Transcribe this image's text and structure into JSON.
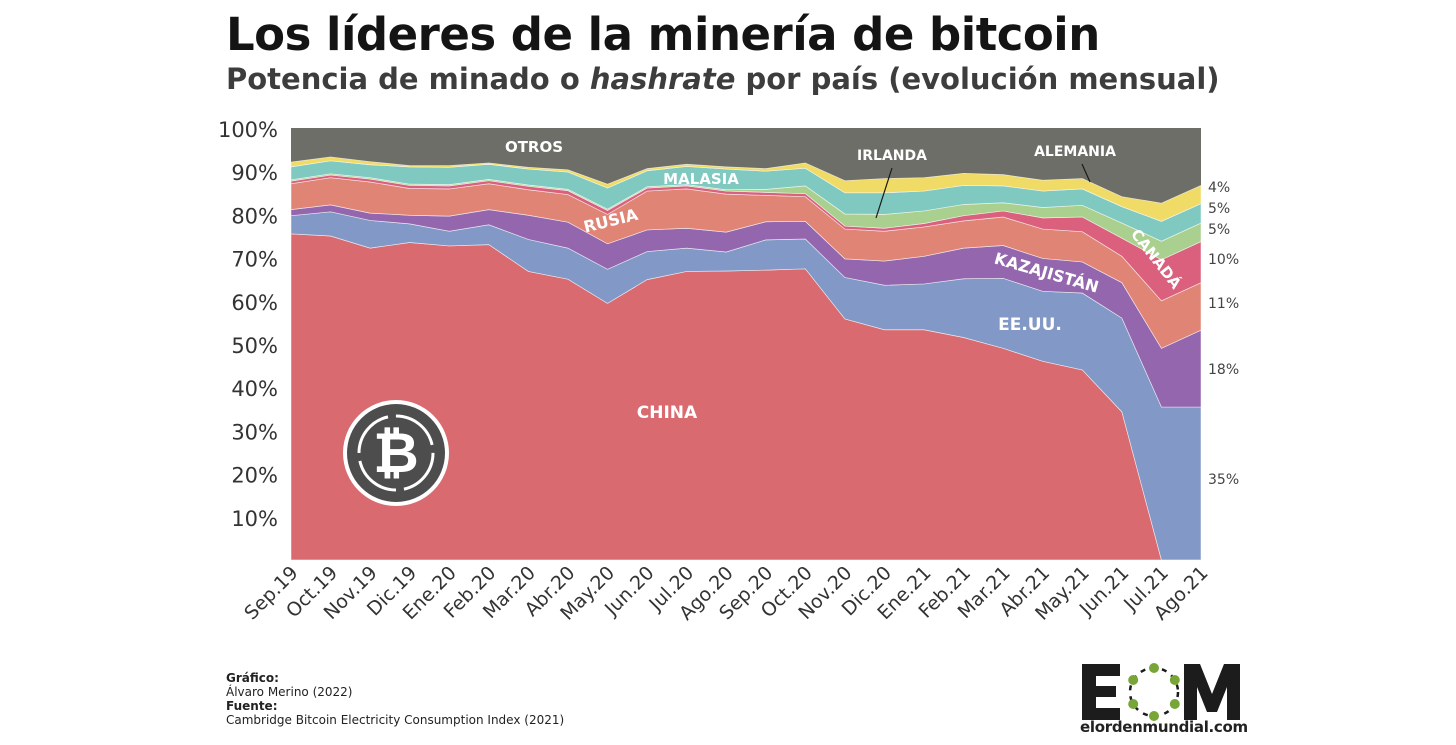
{
  "header": {
    "title": "Los líderes de la minería de bitcoin",
    "subtitle_pre": "Potencia de minado o ",
    "subtitle_em": "hashrate",
    "subtitle_post": " por país (evolución mensual)"
  },
  "chart_data": {
    "type": "area",
    "stacked": true,
    "ylim": [
      0,
      100
    ],
    "yticks": [
      "10%",
      "20%",
      "30%",
      "40%",
      "50%",
      "60%",
      "70%",
      "80%",
      "90%",
      "100%"
    ],
    "grid": false,
    "categories": [
      "Sep.19",
      "Oct.19",
      "Nov.19",
      "Dic.19",
      "Ene.20",
      "Feb.20",
      "Mar.20",
      "Abr.20",
      "May.20",
      "Jun.20",
      "Jul.20",
      "Ago.20",
      "Sep.20",
      "Oct.20",
      "Nov.20",
      "Dic.20",
      "Ene.21",
      "Feb.21",
      "Mar.21",
      "Abr.21",
      "May.21",
      "Jun.21",
      "Jul.21",
      "Ago.21"
    ],
    "series": [
      {
        "name": "CHINA",
        "color": "#d96a6f",
        "values": [
          75.5,
          75,
          72.2,
          73.5,
          72.7,
          73,
          66.8,
          65,
          59.4,
          64.9,
          66.8,
          66.9,
          67.1,
          67.4,
          55.8,
          53.3,
          53.3,
          51.5,
          49,
          46,
          44,
          34.3,
          0,
          0
        ]
      },
      {
        "name": "EE.UU.",
        "color": "#8298c6",
        "values": [
          4.2,
          5.6,
          6.4,
          4.3,
          3.4,
          4.6,
          7.4,
          7.2,
          7.9,
          6.5,
          5.4,
          4.4,
          7,
          6.9,
          9.6,
          10.3,
          10.6,
          13.6,
          16.2,
          16.2,
          17.8,
          21.7,
          35.4,
          35.4
        ]
      },
      {
        "name": "KAZAJISTÁN",
        "color": "#9366ae",
        "values": [
          1.4,
          1.6,
          1.7,
          2,
          3.5,
          3.5,
          5.6,
          6,
          5.9,
          5,
          4.6,
          4.6,
          4.2,
          4.1,
          4.3,
          5.6,
          6.4,
          7.1,
          7.6,
          7.6,
          7.2,
          8.2,
          13.6,
          17.8
        ]
      },
      {
        "name": "RUSIA",
        "color": "#e08575",
        "values": [
          6,
          6.3,
          7.2,
          6.2,
          6.3,
          6,
          5.9,
          6.4,
          6.8,
          9,
          9.1,
          8.8,
          6.1,
          5.7,
          6.9,
          6.9,
          6.8,
          6.3,
          6.6,
          6.8,
          7,
          6.1,
          11,
          11
        ]
      },
      {
        "name": "CANADÁ",
        "color": "#da607d",
        "values": [
          0.6,
          0.6,
          0.7,
          0.7,
          0.7,
          0.7,
          0.8,
          0.9,
          0.9,
          0.7,
          0.7,
          0.7,
          0.7,
          0.7,
          0.7,
          0.7,
          0.8,
          1.2,
          1.4,
          2.6,
          3.4,
          4.2,
          9.5,
          9.5
        ]
      },
      {
        "name": "ALEMANIA",
        "color": "#a9d08e",
        "values": [
          0.3,
          0.3,
          0.3,
          0.3,
          0.3,
          0.3,
          0.3,
          0.3,
          0.3,
          0.3,
          0.3,
          0.3,
          0.7,
          1.8,
          2.8,
          3.2,
          2.9,
          2.6,
          1.9,
          2.4,
          2.7,
          3.5,
          4.3,
          4.3
        ]
      },
      {
        "name": "MALASIA",
        "color": "#7fc9c1",
        "values": [
          3,
          3,
          3,
          4,
          4,
          3.5,
          3.7,
          4,
          4.9,
          3.7,
          4.2,
          4.8,
          4.2,
          4.1,
          4.9,
          5,
          4.6,
          4.4,
          3.9,
          3.8,
          3.8,
          3.8,
          4.6,
          4.5
        ]
      },
      {
        "name": "IRLANDA",
        "color": "#efdb65",
        "values": [
          1.1,
          0.9,
          0.7,
          0.3,
          0.4,
          0.3,
          0.4,
          0.5,
          0.9,
          0.5,
          0.5,
          0.5,
          0.6,
          1.2,
          2.8,
          3.3,
          3.1,
          2.8,
          2.6,
          2.5,
          2.4,
          2.3,
          4.2,
          4.2
        ]
      }
    ],
    "otros_color": "#6e6e69",
    "labels": {
      "CHINA": "CHINA",
      "EEUU": "EE.UU.",
      "KAZAJISTAN": "KAZAJISTÁN",
      "RUSIA": "RUSIA",
      "CANADA": "CANADÁ",
      "MALASIA": "MALASIA",
      "OTROS": "OTROS",
      "IRLANDA": "IRLANDA",
      "ALEMANIA": "ALEMANIA"
    },
    "right_labels": [
      "4%",
      "5%",
      "5%",
      "10%",
      "11%",
      "18%",
      "35%"
    ]
  },
  "credits": {
    "graphic_label": "Gráfico:",
    "graphic_author": "Álvaro Merino (2022)",
    "source_label": "Fuente:",
    "source_text": "Cambridge Bitcoin Electricity Consumption Index (2021)"
  },
  "logo": {
    "letters": "EOM",
    "url": "elordenmundial.com",
    "icon": "bitcoin-icon",
    "color": "#78a538"
  }
}
